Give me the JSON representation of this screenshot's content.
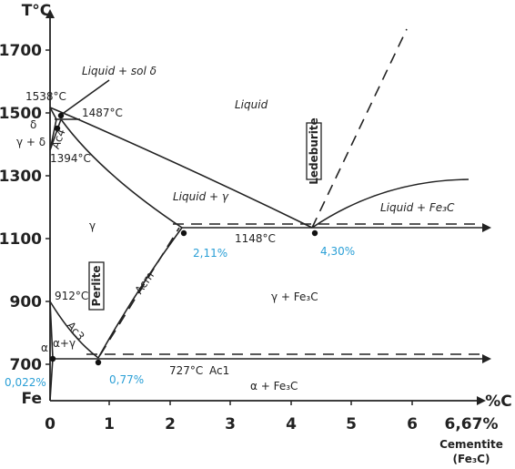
{
  "axes": {
    "y_title": "T°C",
    "y_ticks": [
      "1700",
      "1500",
      "1300",
      "1100",
      "900",
      "700",
      "Fe"
    ],
    "x_title": "%C",
    "x_ticks": [
      "0",
      "1",
      "2",
      "3",
      "4",
      "5",
      "6",
      "6,67%"
    ],
    "x_end_name": "Cementite",
    "x_end_formula": "(Fe₃C)"
  },
  "regions": {
    "liquid_delta": "Liquid + sol δ",
    "liquid": "Liquid",
    "liquid_gamma": "Liquid + γ",
    "gamma": "γ",
    "liquid_cementite": "Liquid + Fe₃C",
    "gamma_cementite": "γ + Fe₃C",
    "alpha_cementite": "α + Fe₃C",
    "delta": "δ",
    "gamma_delta": "γ + δ",
    "alpha": "α",
    "alpha_gamma": "α+γ",
    "perlite": "Perlite",
    "ledeburite": "Ledeburite"
  },
  "points": {
    "melting": "1538°C",
    "peritectic": "1487°C",
    "delta_gamma": "1394°C",
    "alpha_gamma": "912°C",
    "eutectic_temp": "1148°C",
    "eutectoid_temp": "727°C",
    "max_gamma_c": "2,11%",
    "eutectic_c": "4,30%",
    "eutectoid_c": "0,77%",
    "max_alpha_c": "0,022%"
  },
  "lines": {
    "ac4": "Ac4",
    "ac3": "Ac3",
    "acm": "Acm",
    "ac1": "Ac1"
  }
}
